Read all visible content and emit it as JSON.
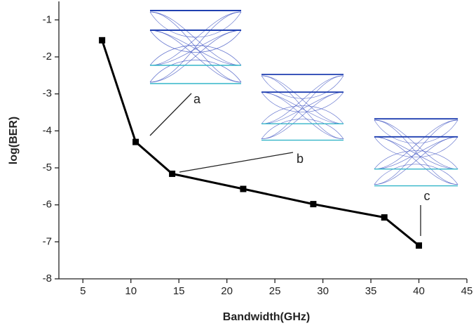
{
  "chart_data": {
    "type": "line",
    "x": [
      7,
      10.5,
      14.3,
      21.7,
      29,
      36.4,
      40
    ],
    "series": [
      {
        "name": "log(BER)",
        "color": "#000000",
        "values": [
          -1.55,
          -4.3,
          -5.16,
          -5.57,
          -5.98,
          -6.34,
          -7.1
        ]
      }
    ],
    "xlim": [
      2.5,
      45
    ],
    "xticks": [
      5,
      10,
      15,
      20,
      25,
      30,
      35,
      40,
      45
    ],
    "ylim": [
      -8,
      -0.5
    ],
    "yticks": [
      -8,
      -7,
      -6,
      -5,
      -4,
      -3,
      -2,
      -1
    ],
    "xlabel": "Bandwidth(GHz)",
    "ylabel": "log(BER)",
    "annotations": [
      "a",
      "b",
      "c"
    ]
  }
}
